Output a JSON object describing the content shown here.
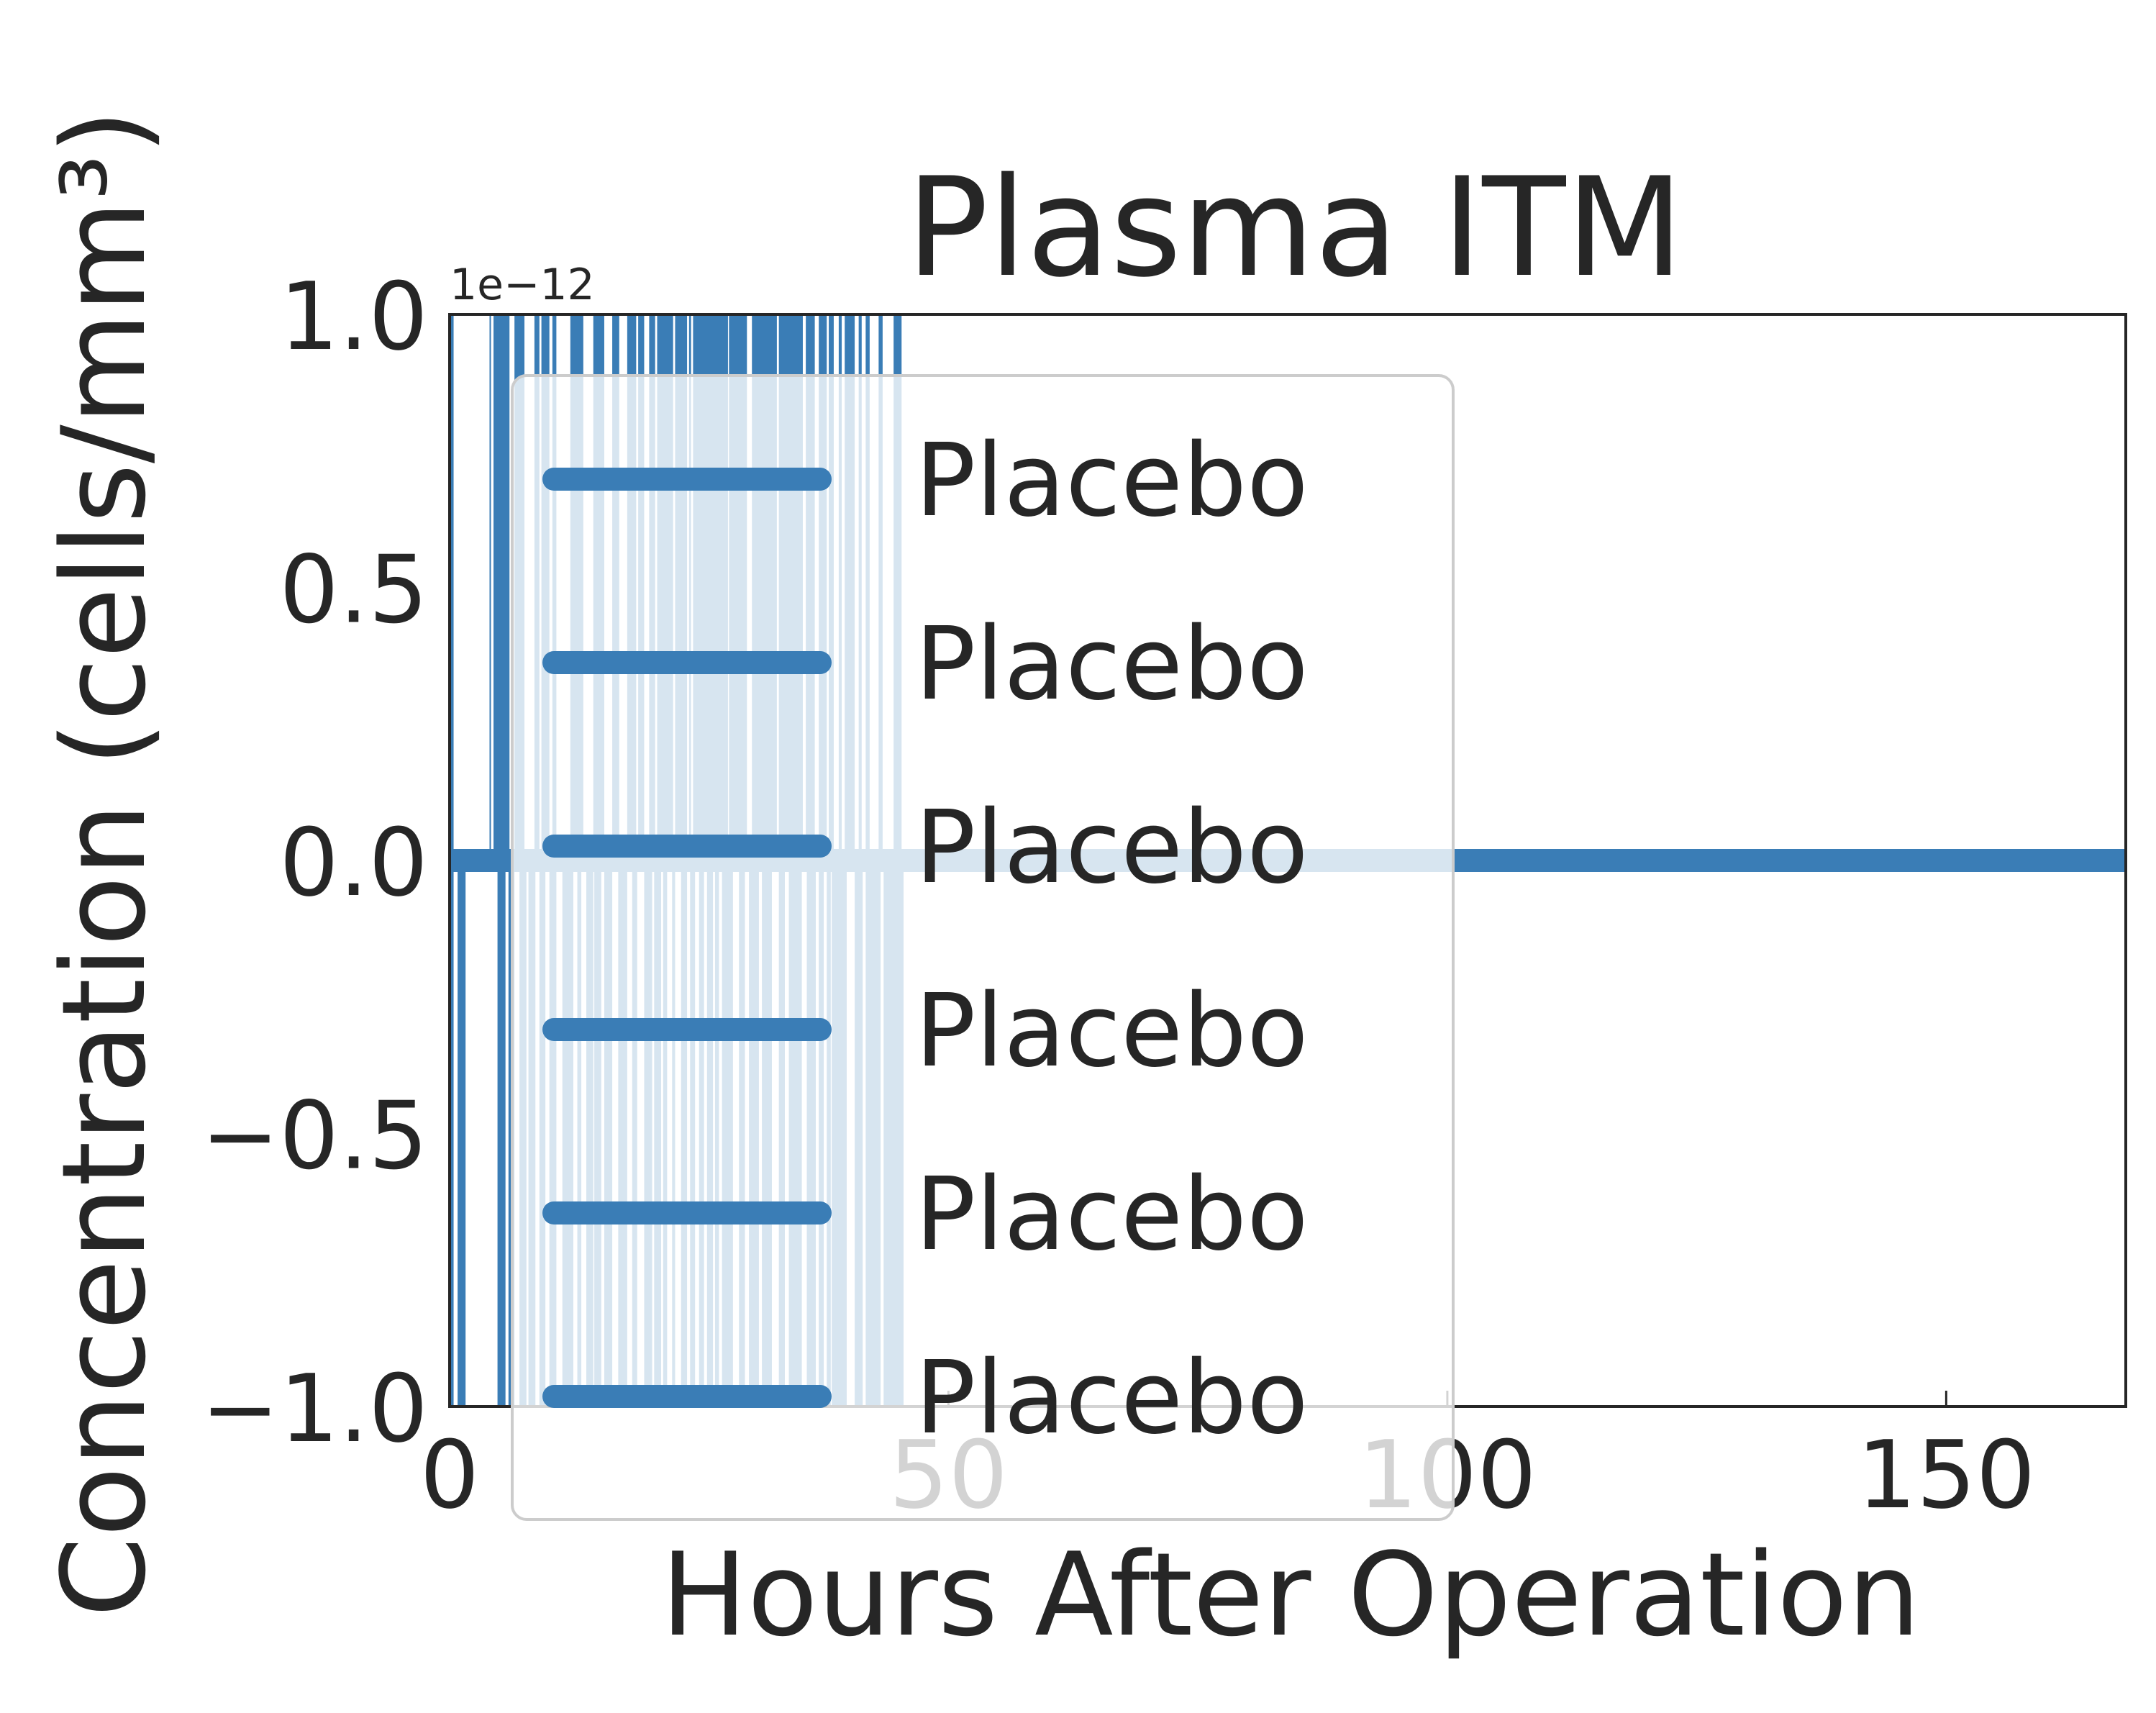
{
  "chart_data": {
    "type": "line",
    "title": "Plasma ITM",
    "xlabel": "Hours After Operation",
    "ylabel": "Concentration (cells/mm³)",
    "y_offset_text": "1e−12",
    "xlim": [
      0,
      168
    ],
    "ylim": [
      -1.0,
      1.0
    ],
    "x_ticks": [
      0,
      50,
      100,
      150
    ],
    "x_tick_labels": [
      "0",
      "50",
      "100",
      "150"
    ],
    "y_ticks": [
      1.0,
      0.5,
      0.0,
      -0.5,
      -1.0
    ],
    "y_tick_labels": [
      "1.0",
      "0.5",
      "0.0",
      "−0.5",
      "−1.0"
    ],
    "grid": false,
    "legend_position": "upper-left",
    "line_color": "#3a7db6",
    "baseline_y": 0.0,
    "upper_spans": [
      [
        0,
        0.4
      ],
      [
        4,
        1.2
      ],
      [
        4.4,
        6.0
      ],
      [
        6.5,
        7.5
      ],
      [
        8.5,
        9.0
      ],
      [
        9.2,
        10.0
      ],
      [
        10.3,
        10.7
      ],
      [
        12.1,
        13.4
      ],
      [
        14.4,
        15.5
      ],
      [
        16.3,
        17.0
      ],
      [
        17.8,
        18.7
      ],
      [
        18.9,
        19.5
      ],
      [
        20.0,
        20.6
      ],
      [
        20.8,
        22.4
      ],
      [
        22.6,
        23.8
      ],
      [
        24.0,
        24.2
      ],
      [
        24.4,
        27.9
      ],
      [
        28.0,
        29.8
      ],
      [
        30.3,
        32.8
      ],
      [
        33.0,
        35.4
      ],
      [
        35.7,
        36.6
      ],
      [
        37.0,
        37.8
      ],
      [
        38.0,
        38.5
      ],
      [
        39.0,
        39.3
      ],
      [
        39.6,
        40.6
      ],
      [
        41.0,
        41.3
      ],
      [
        41.7,
        42.1
      ],
      [
        43.0,
        43.4
      ],
      [
        44.5,
        45.3
      ]
    ],
    "lower_spans": [
      [
        0,
        0.4
      ],
      [
        0.8,
        1.6
      ],
      [
        4.8,
        5.6
      ],
      [
        5.9,
        6.5
      ],
      [
        7.0,
        7.7
      ],
      [
        7.9,
        8.6
      ],
      [
        9.0,
        9.6
      ],
      [
        10.0,
        10.7
      ],
      [
        11.3,
        12.4
      ],
      [
        12.8,
        13.2
      ],
      [
        13.7,
        14.4
      ],
      [
        14.5,
        15.2
      ],
      [
        15.5,
        16.3
      ],
      [
        16.9,
        17.8
      ],
      [
        18.3,
        18.8
      ],
      [
        19.5,
        20.3
      ],
      [
        20.5,
        21.2
      ],
      [
        21.4,
        21.8
      ],
      [
        22.3,
        22.6
      ],
      [
        23.2,
        23.8
      ],
      [
        24.1,
        24.6
      ],
      [
        25.0,
        25.5
      ],
      [
        25.8,
        26.4
      ],
      [
        26.6,
        27.0
      ],
      [
        27.3,
        28.4
      ],
      [
        29.0,
        29.6
      ],
      [
        30.0,
        31.0
      ],
      [
        31.3,
        32.3
      ],
      [
        33.0,
        33.6
      ],
      [
        34.0,
        35.3
      ],
      [
        35.8,
        36.7
      ],
      [
        37.0,
        37.5
      ],
      [
        37.8,
        38.2
      ],
      [
        38.3,
        39.8
      ],
      [
        40.6,
        41.4
      ],
      [
        41.7,
        43.2
      ],
      [
        43.5,
        45.5
      ]
    ],
    "series": [
      {
        "name": "Placebo"
      },
      {
        "name": "Placebo"
      },
      {
        "name": "Placebo"
      },
      {
        "name": "Placebo"
      },
      {
        "name": "Placebo"
      },
      {
        "name": "Placebo"
      }
    ]
  }
}
